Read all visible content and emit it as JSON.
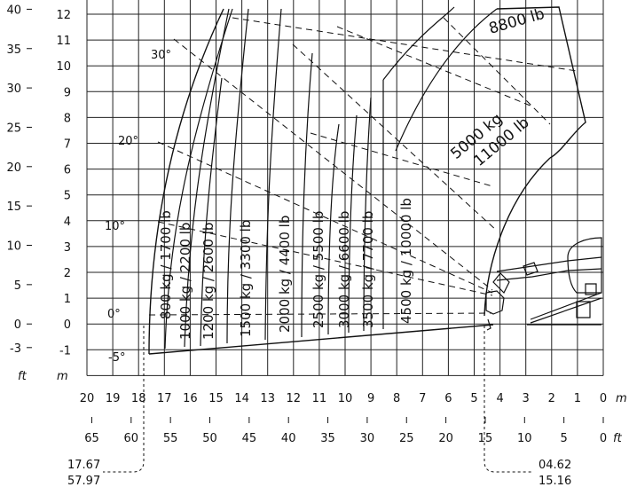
{
  "chart_data": {
    "type": "load-chart",
    "y_axis_m": [
      "12",
      "11",
      "10",
      "9",
      "8",
      "7",
      "6",
      "5",
      "4",
      "3",
      "2",
      "1",
      "0",
      "-1"
    ],
    "y_axis_ft": [
      "40",
      "35",
      "30",
      "25",
      "20",
      "15",
      "10",
      "5",
      "0",
      "-3"
    ],
    "y_unit_m": "m",
    "y_unit_ft": "ft",
    "x_axis_m": [
      "20",
      "19",
      "18",
      "17",
      "16",
      "15",
      "14",
      "13",
      "12",
      "11",
      "10",
      "9",
      "8",
      "7",
      "6",
      "5",
      "4",
      "3",
      "2",
      "1",
      "0"
    ],
    "x_unit_m": "m",
    "x_axis_ft": [
      "65",
      "60",
      "55",
      "50",
      "45",
      "40",
      "35",
      "30",
      "25",
      "20",
      "15",
      "10",
      "5",
      "0"
    ],
    "x_unit_ft": "ft",
    "angles": [
      "30°",
      "20°",
      "10°",
      "0°",
      "-5°"
    ],
    "load_zones": [
      {
        "label": "800 kg / 1700 lb"
      },
      {
        "label": "1000 kg / 2200 lb"
      },
      {
        "label": "1200 kg / 2600 lb"
      },
      {
        "label": "1500 kg / 3300 lb"
      },
      {
        "label": "2000 kg / 4400 lb"
      },
      {
        "label": "2500 kg / 5500 lb"
      },
      {
        "label": "3000 kg / 6600 lb"
      },
      {
        "label": "3500 kg / 7700 lb"
      },
      {
        "label": "4500 kg / 10000 lb"
      }
    ],
    "inner_zone_label": [
      "5000 kg",
      "11000 lb"
    ],
    "top_zone_label": "8800 lb",
    "max_reach_marker": {
      "m": "17.67",
      "ft": "57.97"
    },
    "min_reach_marker": {
      "m": "04.62",
      "ft": "15.16"
    }
  }
}
